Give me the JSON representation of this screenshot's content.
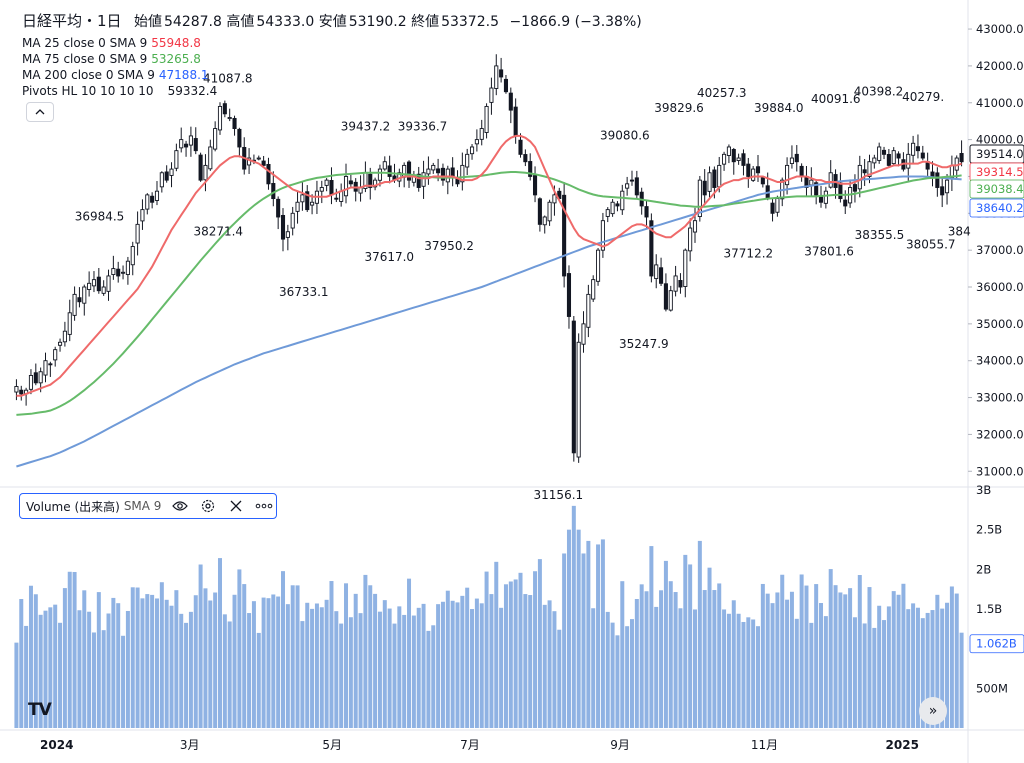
{
  "header": {
    "symbol": "日経平均・1日",
    "open_label": "始値",
    "open": "54287.8",
    "high_label": "高値",
    "high": "54333.0",
    "low_label": "安値",
    "low": "53190.2",
    "close_label": "終値",
    "close": "53372.5",
    "change": "−1866.9 (−3.38%)"
  },
  "indicators": [
    {
      "label": "MA 25 close 0 SMA 9",
      "value": "55948.8",
      "color": "#f23645"
    },
    {
      "label": "MA 75 close 0 SMA 9",
      "value": "53265.8",
      "color": "#4caf50"
    },
    {
      "label": "MA 200 close 0 SMA 9",
      "value": "47188.1",
      "color": "#2962ff"
    },
    {
      "label": "Pivots HL 10 10 10 10",
      "value": "59332.4",
      "color": "#131722"
    }
  ],
  "volume_panel": {
    "label": "Volume (出来高)",
    "sub": "SMA 9"
  },
  "tv_logo": "TV",
  "chart_data": {
    "type": "candlestick",
    "price_axis": {
      "ticks": [
        "43000.0",
        "42000.0",
        "41000.0",
        "40000.0",
        "39000.0",
        "38000.0",
        "37000.0",
        "36000.0",
        "35000.0",
        "34000.0",
        "33000.0",
        "32000.0",
        "31000.0"
      ],
      "range": [
        30600,
        43300
      ]
    },
    "volume_axis": {
      "ticks": [
        "3B",
        "2.5B",
        "2B",
        "1.5B",
        "500M"
      ],
      "range": [
        0,
        3.0
      ]
    },
    "x_ticks": [
      "2024",
      "3月",
      "5月",
      "7月",
      "9月",
      "11月",
      "2025"
    ],
    "price_labels": [
      {
        "value": "39514.0",
        "color": "#131722",
        "bg": "#ffffff"
      },
      {
        "value": "39314.5",
        "color": "#f23645",
        "bg": "#ffffff"
      },
      {
        "value": "39038.4",
        "color": "#4caf50",
        "bg": "#ffffff"
      },
      {
        "value": "38640.2",
        "color": "#2962ff",
        "bg": "#ffffff"
      },
      {
        "value": "1.062B",
        "color": "#2962ff",
        "bg": "#ffffff"
      }
    ],
    "pivots": [
      {
        "text": "41087.8",
        "time": 0.225,
        "price": 41550
      },
      {
        "text": "36984.5",
        "time": 0.09,
        "price": 37800
      },
      {
        "text": "38271.4",
        "time": 0.215,
        "price": 37400
      },
      {
        "text": "39437.2",
        "time": 0.37,
        "price": 40250
      },
      {
        "text": "39336.7",
        "time": 0.43,
        "price": 40250
      },
      {
        "text": "36733.1",
        "time": 0.305,
        "price": 35750
      },
      {
        "text": "37617.0",
        "time": 0.395,
        "price": 36700
      },
      {
        "text": "37950.2",
        "time": 0.458,
        "price": 37000
      },
      {
        "text": "39080.6",
        "time": 0.643,
        "price": 40000
      },
      {
        "text": "39829.6",
        "time": 0.7,
        "price": 40750
      },
      {
        "text": "40257.3",
        "time": 0.745,
        "price": 41150
      },
      {
        "text": "39884.0",
        "time": 0.805,
        "price": 40750
      },
      {
        "text": "40091.6",
        "time": 0.865,
        "price": 41000
      },
      {
        "text": "40398.2",
        "time": 0.91,
        "price": 41200
      },
      {
        "text": "40279.",
        "time": 0.957,
        "price": 41050
      },
      {
        "text": "35247.9",
        "time": 0.663,
        "price": 34350
      },
      {
        "text": "31156.1",
        "time": 0.573,
        "price": 30250
      },
      {
        "text": "37712.2",
        "time": 0.773,
        "price": 36800
      },
      {
        "text": "37801.6",
        "time": 0.858,
        "price": 36850
      },
      {
        "text": "38355.5",
        "time": 0.911,
        "price": 37300
      },
      {
        "text": "38055.7",
        "time": 0.965,
        "price": 37050
      },
      {
        "text": "384",
        "time": 0.995,
        "price": 37400
      }
    ],
    "close_series": [
      33300,
      33100,
      33200,
      33600,
      33400,
      33700,
      34000,
      33900,
      34300,
      34500,
      34800,
      35300,
      35800,
      35600,
      36000,
      36100,
      36200,
      35900,
      36000,
      36300,
      36500,
      36300,
      36400,
      36700,
      37100,
      37700,
      38100,
      38500,
      38300,
      38600,
      39100,
      38900,
      39200,
      39700,
      40000,
      39800,
      40100,
      39700,
      38900,
      39300,
      39800,
      40300,
      40900,
      40700,
      40600,
      40300,
      39800,
      39200,
      39500,
      39400,
      39500,
      39300,
      38800,
      38400,
      37900,
      37300,
      37500,
      38000,
      38300,
      38500,
      38100,
      38300,
      38600,
      38700,
      38900,
      38500,
      38400,
      38600,
      39000,
      38800,
      38600,
      38700,
      39100,
      38700,
      38900,
      39200,
      39400,
      39000,
      38900,
      39100,
      39300,
      38900,
      39000,
      38700,
      39100,
      39200,
      39300,
      39100,
      38900,
      39200,
      39000,
      38800,
      39300,
      39600,
      39800,
      40000,
      40300,
      40900,
      41400,
      42000,
      41700,
      41300,
      40800,
      40100,
      39600,
      39400,
      39000,
      38500,
      37700,
      37900,
      38300,
      38500,
      38400,
      36300,
      35200,
      31500,
      34500,
      35000,
      35800,
      36200,
      37000,
      37800,
      38100,
      38300,
      38200,
      38600,
      38800,
      38900,
      38500,
      38200,
      37900,
      36300,
      36600,
      36100,
      35400,
      35900,
      36300,
      36000,
      37000,
      37600,
      37800,
      38900,
      38500,
      39100,
      38700,
      39300,
      39600,
      39800,
      39400,
      39500,
      39300,
      39000,
      39200,
      39100,
      38800,
      38400,
      38000,
      38400,
      38900,
      39300,
      39500,
      39400,
      39000,
      38700,
      38900,
      38500,
      38300,
      38600,
      39100,
      38700,
      38400,
      38200,
      38700,
      38600,
      39300,
      39100,
      39400,
      39500,
      39800,
      39600,
      39300,
      39700,
      39500,
      39200,
      39600,
      39900,
      39700,
      39500,
      39200,
      39000,
      38700,
      38500,
      38900,
      39300,
      39500,
      39400
    ],
    "ma25": [
      33050,
      33050,
      33100,
      33150,
      33200,
      33250,
      33300,
      33350,
      33450,
      33550,
      33700,
      33850,
      34000,
      34150,
      34300,
      34450,
      34600,
      34750,
      34900,
      35050,
      35200,
      35350,
      35500,
      35650,
      35800,
      35950,
      36150,
      36350,
      36550,
      36800,
      37050,
      37300,
      37550,
      37750,
      37950,
      38150,
      38350,
      38550,
      38700,
      38850,
      39000,
      39150,
      39300,
      39400,
      39500,
      39550,
      39550,
      39500,
      39450,
      39400,
      39350,
      39250,
      39150,
      39050,
      38950,
      38850,
      38750,
      38650,
      38600,
      38550,
      38500,
      38450,
      38450,
      38450,
      38450,
      38500,
      38550,
      38600,
      38650,
      38700,
      38700,
      38700,
      38750,
      38750,
      38750,
      38800,
      38850,
      38850,
      38900,
      38950,
      39000,
      39000,
      39000,
      38950,
      38950,
      38950,
      39000,
      39000,
      39000,
      39000,
      39000,
      38950,
      38900,
      38900,
      38900,
      38950,
      39050,
      39200,
      39400,
      39600,
      39800,
      39950,
      40050,
      40100,
      40100,
      40050,
      39950,
      39800,
      39500,
      39200,
      38900,
      38600,
      38350,
      38100,
      37850,
      37600,
      37400,
      37300,
      37250,
      37200,
      37150,
      37100,
      37150,
      37250,
      37350,
      37450,
      37550,
      37650,
      37700,
      37700,
      37650,
      37550,
      37450,
      37400,
      37350,
      37350,
      37450,
      37550,
      37650,
      37800,
      37950,
      38100,
      38250,
      38400,
      38550,
      38700,
      38800,
      38850,
      38900,
      38900,
      38950,
      38950,
      39000,
      39000,
      39000,
      38950,
      38900,
      38850,
      38850,
      38900,
      38950,
      39000,
      39000,
      39000,
      38950,
      38900,
      38900,
      38850,
      38850,
      38850,
      38800,
      38800,
      38800,
      38850,
      38900,
      39000,
      39050,
      39100,
      39150,
      39200,
      39250,
      39300,
      39300,
      39350,
      39350,
      39350,
      39350,
      39400,
      39400,
      39350,
      39300,
      39250,
      39250,
      39300,
      39300,
      39350
    ],
    "ma75": [
      32530,
      32540,
      32550,
      32560,
      32580,
      32600,
      32620,
      32650,
      32700,
      32760,
      32830,
      32910,
      33000,
      33100,
      33200,
      33310,
      33420,
      33540,
      33660,
      33790,
      33920,
      34060,
      34200,
      34350,
      34500,
      34650,
      34800,
      34960,
      35120,
      35280,
      35440,
      35600,
      35760,
      35920,
      36080,
      36240,
      36400,
      36560,
      36720,
      36870,
      37020,
      37170,
      37320,
      37460,
      37600,
      37730,
      37860,
      37980,
      38100,
      38210,
      38310,
      38400,
      38480,
      38560,
      38630,
      38690,
      38740,
      38780,
      38820,
      38860,
      38900,
      38930,
      38960,
      38980,
      39000,
      39020,
      39040,
      39050,
      39060,
      39070,
      39080,
      39090,
      39100,
      39100,
      39100,
      39100,
      39100,
      39090,
      39080,
      39070,
      39060,
      39050,
      39040,
      39020,
      39000,
      38990,
      38980,
      38970,
      38970,
      38970,
      38970,
      38970,
      38980,
      38990,
      39000,
      39010,
      39020,
      39040,
      39060,
      39080,
      39100,
      39110,
      39120,
      39120,
      39110,
      39100,
      39080,
      39060,
      39030,
      39000,
      38960,
      38920,
      38870,
      38820,
      38770,
      38710,
      38650,
      38600,
      38550,
      38510,
      38480,
      38460,
      38450,
      38440,
      38430,
      38420,
      38410,
      38400,
      38390,
      38370,
      38350,
      38330,
      38310,
      38290,
      38270,
      38250,
      38230,
      38210,
      38200,
      38190,
      38180,
      38180,
      38180,
      38190,
      38200,
      38210,
      38220,
      38240,
      38260,
      38280,
      38300,
      38320,
      38340,
      38360,
      38380,
      38400,
      38410,
      38420,
      38430,
      38440,
      38450,
      38460,
      38460,
      38460,
      38460,
      38460,
      38470,
      38480,
      38490,
      38500,
      38500,
      38500,
      38510,
      38530,
      38560,
      38590,
      38620,
      38650,
      38680,
      38710,
      38740,
      38770,
      38800,
      38830,
      38860,
      38890,
      38910,
      38930,
      38950,
      38960,
      38970,
      38980,
      38990,
      39000,
      39010,
      39030
    ],
    "ma200": [
      31130,
      31170,
      31210,
      31250,
      31290,
      31330,
      31370,
      31410,
      31460,
      31510,
      31570,
      31630,
      31690,
      31750,
      31810,
      31880,
      31950,
      32020,
      32090,
      32160,
      32230,
      32300,
      32370,
      32440,
      32510,
      32580,
      32650,
      32720,
      32790,
      32860,
      32930,
      33000,
      33070,
      33140,
      33210,
      33280,
      33350,
      33420,
      33480,
      33540,
      33600,
      33660,
      33720,
      33780,
      33840,
      33900,
      33950,
      34000,
      34050,
      34100,
      34150,
      34200,
      34240,
      34280,
      34320,
      34360,
      34400,
      34440,
      34480,
      34520,
      34560,
      34600,
      34640,
      34680,
      34720,
      34760,
      34800,
      34840,
      34880,
      34920,
      34960,
      35000,
      35040,
      35080,
      35120,
      35160,
      35200,
      35240,
      35280,
      35320,
      35360,
      35400,
      35440,
      35480,
      35520,
      35560,
      35600,
      35640,
      35680,
      35720,
      35760,
      35800,
      35840,
      35880,
      35920,
      35960,
      36000,
      36050,
      36100,
      36150,
      36200,
      36250,
      36300,
      36350,
      36400,
      36450,
      36500,
      36550,
      36600,
      36650,
      36700,
      36750,
      36800,
      36850,
      36900,
      36950,
      37000,
      37050,
      37100,
      37140,
      37180,
      37220,
      37260,
      37300,
      37340,
      37380,
      37420,
      37460,
      37500,
      37540,
      37580,
      37620,
      37660,
      37700,
      37740,
      37780,
      37820,
      37860,
      37900,
      37940,
      37980,
      38020,
      38060,
      38100,
      38140,
      38180,
      38220,
      38260,
      38300,
      38340,
      38380,
      38420,
      38460,
      38500,
      38530,
      38560,
      38590,
      38610,
      38630,
      38650,
      38670,
      38690,
      38710,
      38730,
      38750,
      38770,
      38790,
      38810,
      38830,
      38850,
      38870,
      38880,
      38890,
      38900,
      38910,
      38920,
      38930,
      38940,
      38950,
      38960,
      38970,
      38980,
      38990,
      39000,
      39000,
      39000,
      39000,
      39000,
      38990,
      38980,
      38970,
      38960,
      38950,
      38940,
      38930,
      38920
    ]
  }
}
